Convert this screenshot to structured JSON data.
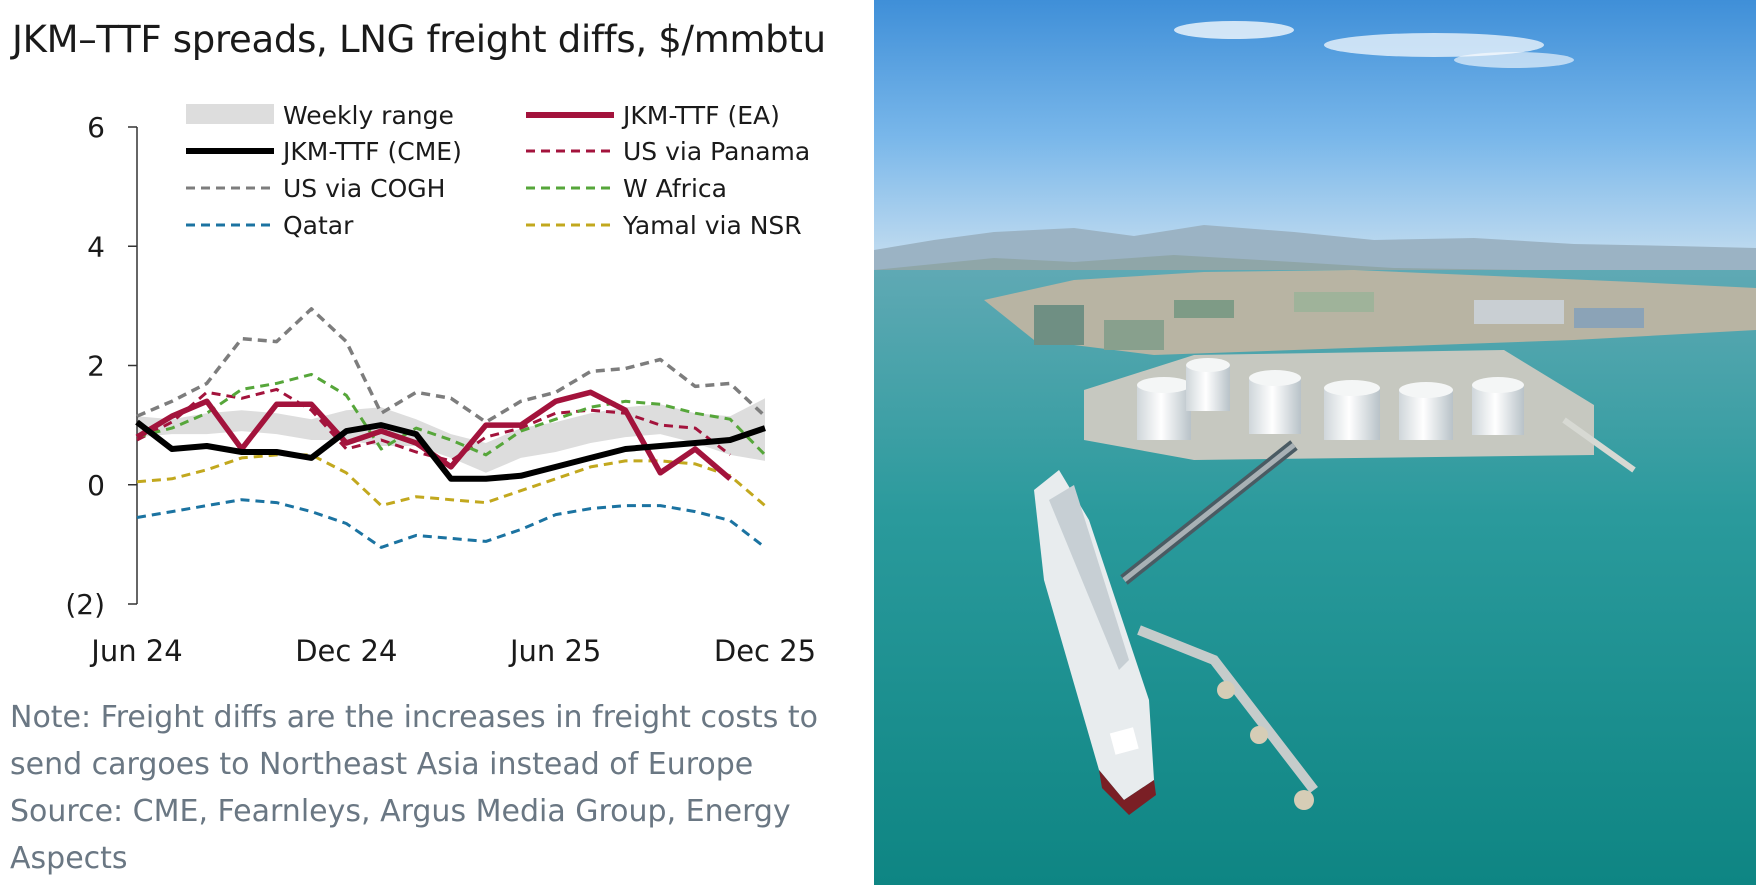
{
  "chart_data": {
    "type": "line",
    "title": "JKM–TTF spreads, LNG freight diffs, $/mmbtu",
    "x": [
      "Jun 24",
      "Jul 24",
      "Aug 24",
      "Sep 24",
      "Oct 24",
      "Nov 24",
      "Dec 24",
      "Jan 25",
      "Feb 25",
      "Mar 25",
      "Apr 25",
      "May 25",
      "Jun 25",
      "Jul 25",
      "Aug 25",
      "Sep 25",
      "Oct 25",
      "Nov 25",
      "Dec 25"
    ],
    "x_ticks": [
      "Jun 24",
      "Dec 24",
      "Jun 25",
      "Dec 25"
    ],
    "ylim": [
      -2,
      6
    ],
    "y_ticks": [
      6,
      4,
      2,
      0,
      -2
    ],
    "y_tick_labels": [
      "6",
      "4",
      "2",
      "0",
      "(2)"
    ],
    "grid": false,
    "legend_position": "top",
    "range": {
      "name": "Weekly range",
      "low": [
        0.8,
        0.85,
        0.85,
        0.9,
        0.85,
        0.75,
        0.75,
        0.65,
        0.65,
        0.45,
        0.2,
        0.45,
        0.55,
        0.7,
        0.8,
        0.85,
        0.7,
        0.5,
        0.4
      ],
      "high": [
        1.15,
        1.1,
        1.2,
        1.25,
        1.2,
        1.1,
        1.25,
        1.3,
        1.1,
        0.85,
        0.7,
        0.95,
        1.05,
        1.2,
        1.3,
        1.35,
        1.2,
        1.15,
        1.45
      ]
    },
    "series": [
      {
        "name": "JKM-TTF (EA)",
        "color": "#a3133c",
        "dash": "solid",
        "width": 5.5,
        "values": [
          0.8,
          1.15,
          1.4,
          0.6,
          1.35,
          1.35,
          0.7,
          0.9,
          0.7,
          0.3,
          1.0,
          1.0,
          1.4,
          1.55,
          1.25,
          0.2,
          0.6,
          0.1,
          null
        ]
      },
      {
        "name": "JKM-TTF (CME)",
        "color": "#000000",
        "dash": "solid",
        "width": 6,
        "values": [
          1.05,
          0.6,
          0.65,
          0.55,
          0.55,
          0.45,
          0.9,
          1.0,
          0.85,
          0.1,
          0.1,
          0.15,
          0.3,
          0.45,
          0.6,
          0.65,
          0.7,
          0.75,
          0.95
        ]
      },
      {
        "name": "US via Panama",
        "color": "#a3133c",
        "dash": "dashed",
        "width": 3,
        "values": [
          0.75,
          1.05,
          1.55,
          1.45,
          1.6,
          1.25,
          0.6,
          0.75,
          0.55,
          0.4,
          0.8,
          0.95,
          1.2,
          1.25,
          1.2,
          1.0,
          0.95,
          0.5,
          null
        ]
      },
      {
        "name": "US via COGH",
        "color": "#7d7d7d",
        "dash": "dashed",
        "width": 3.5,
        "values": [
          1.15,
          1.4,
          1.7,
          2.45,
          2.4,
          2.95,
          2.4,
          1.2,
          1.55,
          1.45,
          1.05,
          1.4,
          1.55,
          1.9,
          1.95,
          2.1,
          1.65,
          1.7,
          1.15
        ]
      },
      {
        "name": "W Africa",
        "color": "#56a63a",
        "dash": "dashed",
        "width": 3,
        "values": [
          0.8,
          0.95,
          1.2,
          1.6,
          1.7,
          1.85,
          1.5,
          0.6,
          0.95,
          0.75,
          0.5,
          0.9,
          1.1,
          1.3,
          1.4,
          1.35,
          1.2,
          1.1,
          0.5
        ]
      },
      {
        "name": "Qatar",
        "color": "#1b73a1",
        "dash": "dashed",
        "width": 3,
        "values": [
          -0.55,
          -0.45,
          -0.35,
          -0.25,
          -0.3,
          -0.45,
          -0.65,
          -1.05,
          -0.85,
          -0.9,
          -0.95,
          -0.75,
          -0.5,
          -0.4,
          -0.35,
          -0.35,
          -0.45,
          -0.6,
          -1.05
        ]
      },
      {
        "name": "Yamal via NSR",
        "color": "#c2a81e",
        "dash": "dashed",
        "width": 3,
        "values": [
          0.05,
          0.1,
          0.25,
          0.45,
          0.5,
          0.5,
          0.2,
          -0.35,
          -0.2,
          -0.25,
          -0.3,
          -0.1,
          0.1,
          0.3,
          0.4,
          0.4,
          0.35,
          0.15,
          -0.35
        ]
      }
    ],
    "legend_order": [
      "Weekly range",
      "JKM-TTF (EA)",
      "JKM-TTF (CME)",
      "US via Panama",
      "US via COGH",
      "W Africa",
      "Qatar",
      "Yamal via NSR"
    ]
  },
  "note_lines": [
    "Note: Freight diffs are the increases in freight costs to",
    "send cargoes to Northeast Asia instead of Europe",
    "Source: CME, Fearnleys, Argus Media Group, Energy",
    "Aspects"
  ],
  "colors": {
    "range_fill": "#dddddd",
    "axis": "#333333",
    "text": "#1a1a1a",
    "note": "#6a7783"
  }
}
